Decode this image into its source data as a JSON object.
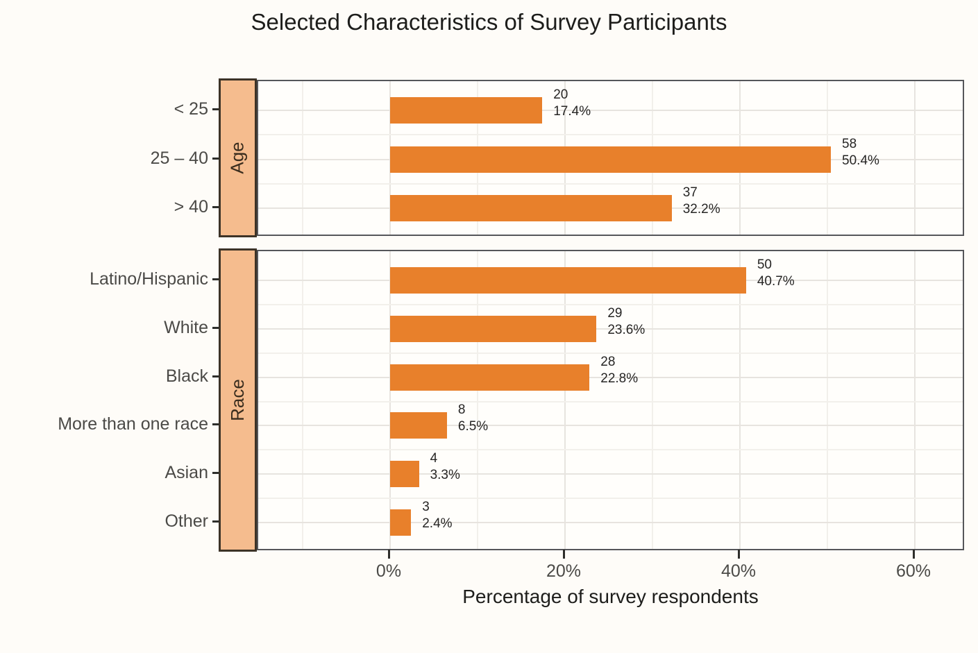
{
  "chart_data": {
    "type": "bar",
    "orientation": "horizontal",
    "title": "Selected Characteristics of Survey Participants",
    "xlabel": "Percentage of survey respondents",
    "x_ticks": [
      {
        "label": "0%",
        "value": 0
      },
      {
        "label": "20%",
        "value": 20
      },
      {
        "label": "40%",
        "value": 40
      },
      {
        "label": "60%",
        "value": 60
      }
    ],
    "x_minor_ticks": [
      -10,
      10,
      30,
      50
    ],
    "xlim": [
      -15.1,
      65.8
    ],
    "grid": true,
    "legend": false,
    "bar_color": "#E8802B",
    "strip_fill": "#F5BC8E",
    "facets": [
      {
        "label": "Age",
        "rows": [
          {
            "category": "< 25",
            "count": 20,
            "percent": 17.4,
            "percent_label": "17.4%"
          },
          {
            "category": "25 – 40",
            "count": 58,
            "percent": 50.4,
            "percent_label": "50.4%"
          },
          {
            "category": "> 40",
            "count": 37,
            "percent": 32.2,
            "percent_label": "32.2%"
          }
        ]
      },
      {
        "label": "Race",
        "rows": [
          {
            "category": "Latino/Hispanic",
            "count": 50,
            "percent": 40.7,
            "percent_label": "40.7%"
          },
          {
            "category": "White",
            "count": 29,
            "percent": 23.6,
            "percent_label": "23.6%"
          },
          {
            "category": "Black",
            "count": 28,
            "percent": 22.8,
            "percent_label": "22.8%"
          },
          {
            "category": "More than one race",
            "count": 8,
            "percent": 6.5,
            "percent_label": "6.5%"
          },
          {
            "category": "Asian",
            "count": 4,
            "percent": 3.3,
            "percent_label": "3.3%"
          },
          {
            "category": "Other",
            "count": 3,
            "percent": 2.4,
            "percent_label": "2.4%"
          }
        ]
      }
    ]
  }
}
